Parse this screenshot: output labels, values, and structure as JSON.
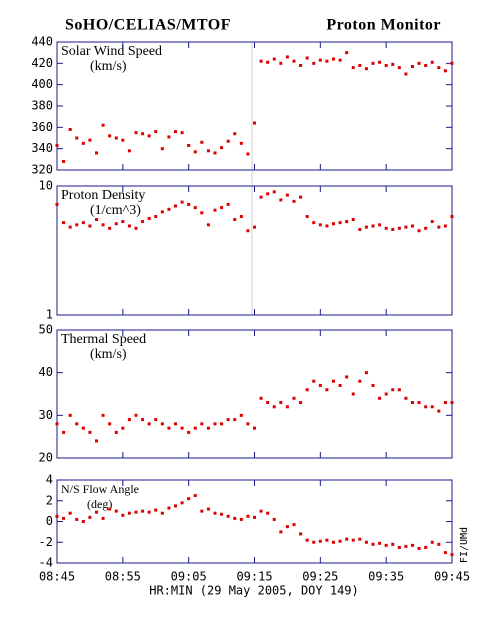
{
  "header": {
    "title_left": "SoHO/CELIAS/MTOF",
    "title_right": "Proton Monitor",
    "credit": "FI/UMd"
  },
  "x_axis": {
    "label": "HR:MIN (29 May 2005, DOY 149)",
    "xlim": [
      "08:45",
      "09:45"
    ],
    "xticks": [
      "08:45",
      "08:55",
      "09:05",
      "09:15",
      "09:25",
      "09:35",
      "09:45"
    ],
    "x": [
      "08:45",
      "08:46",
      "08:47",
      "08:48",
      "08:49",
      "08:50",
      "08:51",
      "08:52",
      "08:53",
      "08:54",
      "08:55",
      "08:56",
      "08:57",
      "08:58",
      "08:59",
      "09:00",
      "09:01",
      "09:02",
      "09:03",
      "09:04",
      "09:05",
      "09:06",
      "09:07",
      "09:08",
      "09:09",
      "09:10",
      "09:11",
      "09:12",
      "09:13",
      "09:14",
      "09:15",
      "09:16",
      "09:17",
      "09:18",
      "09:19",
      "09:20",
      "09:21",
      "09:22",
      "09:23",
      "09:24",
      "09:25",
      "09:26",
      "09:27",
      "09:28",
      "09:29",
      "09:30",
      "09:31",
      "09:32",
      "09:33",
      "09:34",
      "09:35",
      "09:36",
      "09:37",
      "09:38",
      "09:39",
      "09:40",
      "09:41",
      "09:42",
      "09:43",
      "09:44",
      "09:45"
    ]
  },
  "chart_data": [
    {
      "type": "scatter",
      "title": "Solar Wind Speed",
      "unit": "(km/s)",
      "color": "#dd0000",
      "ylim": [
        320,
        440
      ],
      "yticks": [
        320,
        340,
        360,
        380,
        400,
        420,
        440
      ],
      "values": [
        343,
        328,
        358,
        350,
        345,
        348,
        336,
        362,
        352,
        350,
        348,
        338,
        355,
        354,
        352,
        356,
        340,
        351,
        356,
        355,
        343,
        337,
        346,
        338,
        336,
        341,
        347,
        354,
        345,
        335,
        364,
        422,
        421,
        424,
        420,
        426,
        422,
        418,
        425,
        420,
        423,
        422,
        424,
        423,
        430,
        416,
        418,
        415,
        420,
        421,
        418,
        419,
        416,
        410,
        417,
        420,
        418,
        421,
        416,
        413,
        420
      ]
    },
    {
      "type": "scatter",
      "title": "Proton Density",
      "unit": "(1/cm^3)",
      "color": "#dd0000",
      "log": true,
      "ylim": [
        1,
        10
      ],
      "yticks": [
        1,
        10
      ],
      "values": [
        7.2,
        5.2,
        4.8,
        5.0,
        5.2,
        4.9,
        5.5,
        5.0,
        4.7,
        5.1,
        5.3,
        4.9,
        4.7,
        5.3,
        5.6,
        5.8,
        6.3,
        6.6,
        7.0,
        7.5,
        7.2,
        6.8,
        6.2,
        5.0,
        6.5,
        6.8,
        7.2,
        5.5,
        5.8,
        4.5,
        4.8,
        8.2,
        8.7,
        9.0,
        7.8,
        8.5,
        7.6,
        8.2,
        5.8,
        5.2,
        5.0,
        4.9,
        5.1,
        5.2,
        5.3,
        5.5,
        4.6,
        4.8,
        4.9,
        5.0,
        4.7,
        4.6,
        4.7,
        4.8,
        4.9,
        4.5,
        4.7,
        5.3,
        4.8,
        4.9,
        5.8
      ]
    },
    {
      "type": "scatter",
      "title": "Thermal Speed",
      "unit": "(km/s)",
      "color": "#dd0000",
      "ylim": [
        20,
        50
      ],
      "yticks": [
        20,
        30,
        40,
        50
      ],
      "values": [
        28,
        26,
        30,
        28,
        27,
        26,
        24,
        30,
        28,
        26,
        27,
        29,
        30,
        29,
        28,
        29,
        28,
        27,
        28,
        27,
        26,
        27,
        28,
        27,
        28,
        28,
        29,
        29,
        30,
        28,
        27,
        34,
        33,
        32,
        33,
        32,
        34,
        33,
        36,
        38,
        37,
        36,
        38,
        37,
        39,
        35,
        38,
        40,
        37,
        34,
        35,
        36,
        36,
        34,
        33,
        33,
        32,
        32,
        31,
        33,
        33
      ]
    },
    {
      "type": "scatter",
      "title": "N/S Flow Angle",
      "unit": "(deg)",
      "color": "#dd0000",
      "ylim": [
        -4,
        4
      ],
      "yticks": [
        -4,
        -2,
        0,
        2,
        4
      ],
      "values": [
        0.5,
        0.3,
        0.8,
        0.2,
        0,
        0.4,
        0.9,
        0.3,
        1.2,
        1.0,
        0.6,
        0.8,
        0.9,
        1.0,
        0.9,
        1.1,
        0.8,
        1.3,
        1.5,
        1.8,
        2.2,
        2.5,
        1.0,
        1.2,
        0.8,
        0.7,
        0.5,
        0.3,
        0.2,
        0.5,
        0.4,
        1.0,
        0.8,
        0.2,
        -1.0,
        -0.5,
        -0.3,
        -1.2,
        -1.8,
        -2.0,
        -1.9,
        -1.8,
        -2.0,
        -1.9,
        -1.7,
        -1.8,
        -1.7,
        -2.0,
        -2.2,
        -2.1,
        -2.3,
        -2.2,
        -2.5,
        -2.4,
        -2.3,
        -2.6,
        -2.5,
        -2.0,
        -2.2,
        -3.0,
        -3.2
      ]
    }
  ]
}
